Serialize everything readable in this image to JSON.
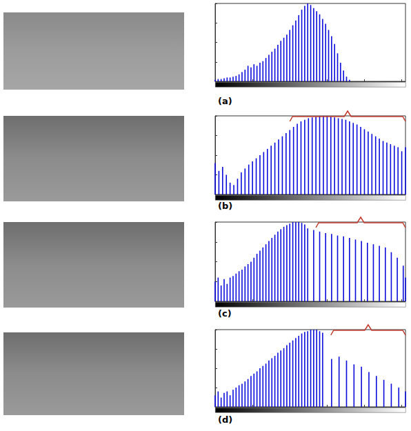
{
  "chart_data": [
    {
      "type": "bar",
      "title": "(a)",
      "color": "#0a0adc",
      "grid": false,
      "tick_labels": false,
      "xlim": [
        0,
        255
      ],
      "xticks": [
        0,
        50,
        100,
        150,
        200,
        250
      ],
      "ylim": [
        0,
        1
      ],
      "yticks": [
        0,
        0.25,
        0.5,
        0.75,
        1
      ],
      "x": [
        0,
        4,
        8,
        12,
        16,
        20,
        24,
        28,
        32,
        36,
        40,
        44,
        48,
        52,
        56,
        60,
        64,
        68,
        72,
        76,
        80,
        84,
        88,
        92,
        96,
        100,
        104,
        108,
        112,
        116,
        120,
        124,
        128,
        132,
        136,
        140,
        144,
        148,
        152,
        156,
        160,
        164,
        168,
        172,
        176,
        180
      ],
      "values": [
        0.02,
        0.03,
        0.03,
        0.04,
        0.05,
        0.05,
        0.06,
        0.07,
        0.09,
        0.12,
        0.15,
        0.2,
        0.18,
        0.22,
        0.2,
        0.24,
        0.26,
        0.3,
        0.34,
        0.38,
        0.42,
        0.47,
        0.52,
        0.56,
        0.6,
        0.66,
        0.72,
        0.78,
        0.85,
        0.92,
        0.97,
        1.0,
        0.98,
        0.94,
        0.9,
        0.86,
        0.8,
        0.74,
        0.66,
        0.58,
        0.48,
        0.36,
        0.24,
        0.14,
        0.06,
        0.02
      ]
    },
    {
      "type": "bar",
      "title": "(b)",
      "color": "#0a0adc",
      "grid": false,
      "tick_labels": false,
      "xlim": [
        0,
        255
      ],
      "xticks": [
        0,
        50,
        100,
        150,
        200,
        250
      ],
      "ylim": [
        0,
        1
      ],
      "yticks": [
        0,
        0.25,
        0.5,
        0.75,
        1
      ],
      "highlight_range": [
        100,
        255
      ],
      "x": [
        0,
        5,
        10,
        15,
        20,
        25,
        30,
        35,
        40,
        45,
        50,
        55,
        60,
        65,
        70,
        75,
        80,
        85,
        90,
        95,
        100,
        105,
        110,
        115,
        120,
        125,
        130,
        135,
        140,
        145,
        150,
        155,
        160,
        165,
        170,
        175,
        180,
        185,
        190,
        195,
        200,
        205,
        210,
        215,
        220,
        225,
        230,
        235,
        240,
        245,
        250,
        255
      ],
      "values": [
        0.4,
        0.3,
        0.35,
        0.25,
        0.15,
        0.12,
        0.2,
        0.28,
        0.33,
        0.38,
        0.42,
        0.46,
        0.5,
        0.54,
        0.58,
        0.62,
        0.66,
        0.7,
        0.74,
        0.78,
        0.82,
        0.86,
        0.9,
        0.93,
        0.95,
        0.97,
        0.98,
        0.99,
        1.0,
        1.0,
        1.0,
        0.99,
        0.98,
        0.97,
        0.96,
        0.95,
        0.93,
        0.91,
        0.89,
        0.86,
        0.83,
        0.8,
        0.77,
        0.74,
        0.71,
        0.68,
        0.66,
        0.64,
        0.62,
        0.6,
        0.55,
        0.6
      ]
    },
    {
      "type": "bar",
      "title": "(c)",
      "color": "#0a0adc",
      "grid": false,
      "tick_labels": false,
      "xlim": [
        0,
        255
      ],
      "xticks": [
        0,
        50,
        100,
        150,
        200,
        250
      ],
      "ylim": [
        0,
        1
      ],
      "yticks": [
        0,
        0.25,
        0.5,
        0.75,
        1
      ],
      "highlight_range": [
        135,
        255
      ],
      "x": [
        0,
        4,
        8,
        12,
        16,
        20,
        24,
        28,
        32,
        36,
        40,
        44,
        48,
        52,
        56,
        60,
        64,
        68,
        72,
        76,
        80,
        84,
        88,
        92,
        96,
        100,
        104,
        108,
        112,
        116,
        120,
        124,
        132,
        140,
        148,
        156,
        164,
        172,
        180,
        188,
        196,
        204,
        212,
        220,
        228,
        236,
        244,
        252,
        255
      ],
      "values": [
        0.25,
        0.3,
        0.2,
        0.28,
        0.22,
        0.3,
        0.32,
        0.35,
        0.38,
        0.4,
        0.44,
        0.47,
        0.5,
        0.55,
        0.6,
        0.64,
        0.68,
        0.72,
        0.76,
        0.8,
        0.84,
        0.88,
        0.91,
        0.94,
        0.96,
        0.98,
        1.0,
        1.0,
        1.0,
        0.99,
        0.97,
        0.92,
        0.9,
        0.88,
        0.86,
        0.85,
        0.83,
        0.82,
        0.8,
        0.78,
        0.76,
        0.74,
        0.72,
        0.7,
        0.68,
        0.62,
        0.55,
        0.45,
        0.3
      ]
    },
    {
      "type": "bar",
      "title": "(d)",
      "color": "#0a0adc",
      "grid": false,
      "tick_labels": false,
      "xlim": [
        0,
        255
      ],
      "xticks": [
        0,
        50,
        100,
        150,
        200,
        250
      ],
      "ylim": [
        0,
        1
      ],
      "yticks": [
        0,
        0.25,
        0.5,
        0.75,
        1
      ],
      "highlight_range": [
        155,
        255
      ],
      "x": [
        0,
        4,
        8,
        12,
        16,
        20,
        24,
        28,
        32,
        36,
        40,
        44,
        48,
        52,
        56,
        60,
        64,
        68,
        72,
        76,
        80,
        84,
        88,
        92,
        96,
        100,
        104,
        108,
        112,
        116,
        120,
        124,
        128,
        132,
        136,
        140,
        144,
        156,
        166,
        176,
        186,
        196,
        206,
        216,
        226,
        236,
        246,
        255
      ],
      "values": [
        0.15,
        0.2,
        0.12,
        0.18,
        0.2,
        0.15,
        0.22,
        0.25,
        0.28,
        0.3,
        0.33,
        0.36,
        0.4,
        0.43,
        0.46,
        0.5,
        0.53,
        0.56,
        0.6,
        0.63,
        0.66,
        0.7,
        0.73,
        0.76,
        0.8,
        0.83,
        0.86,
        0.89,
        0.92,
        0.95,
        0.97,
        0.98,
        1.0,
        1.0,
        1.0,
        0.98,
        0.96,
        0.62,
        0.65,
        0.6,
        0.55,
        0.52,
        0.45,
        0.4,
        0.35,
        0.3,
        0.25,
        0.2
      ]
    }
  ]
}
